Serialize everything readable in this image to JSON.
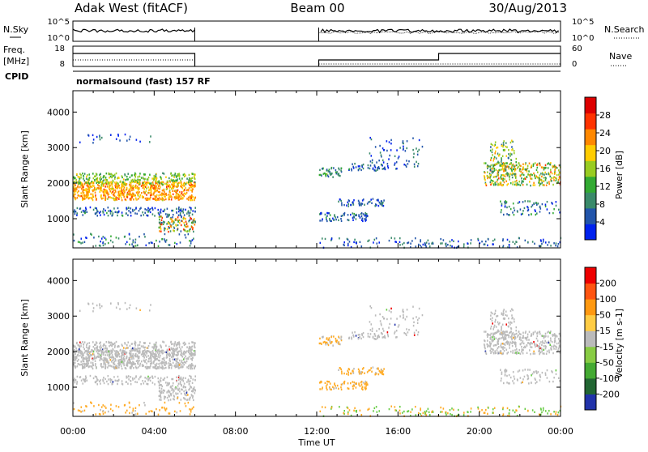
{
  "header": {
    "station": "Adak West (fitACF)",
    "beam": "Beam 00",
    "date": "30/Aug/2013"
  },
  "top_panels": {
    "nsky_label": "N.Sky",
    "nsearch_label": "N.Search",
    "freq_label_line1": "Freq.",
    "freq_label_line2": "[MHz]",
    "nave_label": "Nave",
    "cpid_label": "CPID",
    "cpid_text": "normalsound (fast) 157 RF",
    "noise_ticks_left": [
      "10^5",
      "10^0"
    ],
    "noise_ticks_right": [
      "10^5",
      "10^0"
    ],
    "freq_ticks": [
      "18",
      "8"
    ],
    "nave_ticks": [
      "60",
      "0"
    ]
  },
  "chart_data": [
    {
      "type": "heatmap",
      "name": "power",
      "ylabel": "Slant Range [km]",
      "xlabel": "Time UT",
      "x_ticks": [
        "00:00",
        "04:00",
        "08:00",
        "12:00",
        "16:00",
        "20:00",
        "00:00"
      ],
      "x_hours": [
        0,
        4,
        8,
        12,
        16,
        20,
        24
      ],
      "y_ticks": [
        1000,
        2000,
        3000,
        4000
      ],
      "ylim": [
        180,
        4600
      ],
      "colorbar": {
        "label": "Power [dB]",
        "tick_labels": [
          "4",
          "8",
          "12",
          "16",
          "20",
          "24",
          "28"
        ],
        "tick_values": [
          4,
          8,
          12,
          16,
          20,
          24,
          28
        ],
        "range": [
          0,
          32
        ],
        "colors": [
          "#0022ee",
          "#2255aa",
          "#3a8a6a",
          "#33aa33",
          "#99cc22",
          "#ffcc00",
          "#ff8800",
          "#ff3300",
          "#dd0000"
        ]
      },
      "data_gaps_hours": [
        [
          6.0,
          12.1
        ]
      ]
    },
    {
      "type": "heatmap",
      "name": "velocity",
      "ylabel": "Slant Range [km]",
      "xlabel": "Time UT",
      "x_ticks": [
        "00:00",
        "04:00",
        "08:00",
        "12:00",
        "16:00",
        "20:00",
        "00:00"
      ],
      "x_hours": [
        0,
        4,
        8,
        12,
        16,
        20,
        24
      ],
      "y_ticks": [
        1000,
        2000,
        3000,
        4000
      ],
      "ylim": [
        180,
        4600
      ],
      "colorbar": {
        "label": "Velocity [m s-1]",
        "tick_labels": [
          "200",
          "100",
          "50",
          "15",
          "-15",
          "-50",
          "-100",
          "-200"
        ],
        "colors": [
          "#2233aa",
          "#226633",
          "#44aa33",
          "#88cc44",
          "#bbbbbb",
          "#ffcc44",
          "#ff9911",
          "#ff5511",
          "#ee0000"
        ]
      },
      "data_gaps_hours": [
        [
          6.0,
          12.1
        ]
      ]
    }
  ]
}
